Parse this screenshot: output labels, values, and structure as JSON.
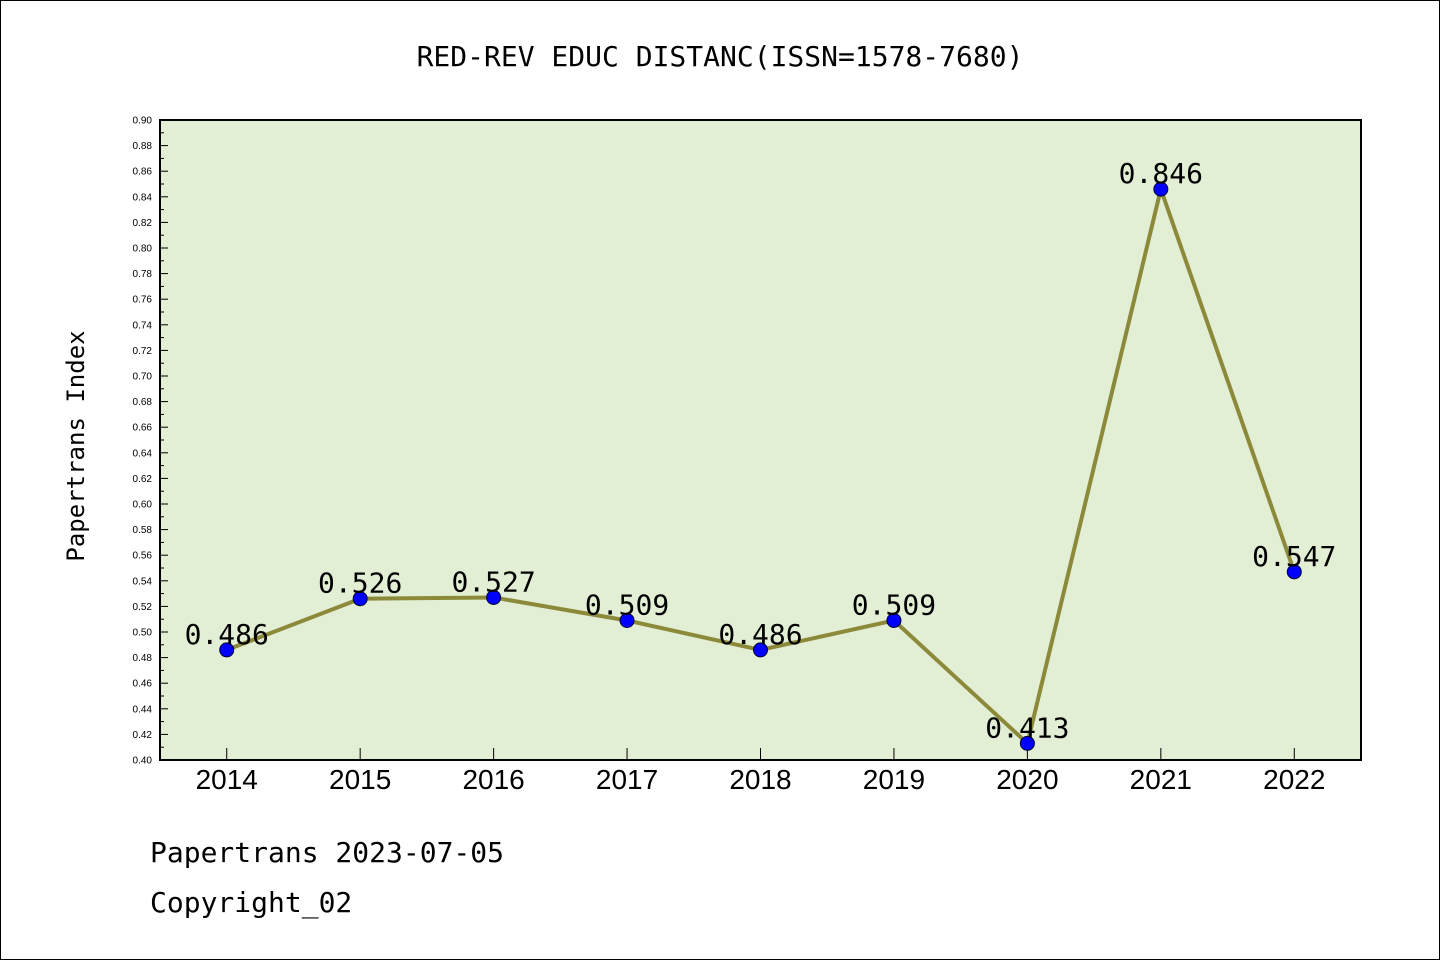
{
  "chart_data": {
    "type": "line",
    "title": "RED-REV EDUC DISTANC(ISSN=1578-7680)",
    "xlabel": "",
    "ylabel": "Papertrans Index",
    "categories": [
      "2014",
      "2015",
      "2016",
      "2017",
      "2018",
      "2019",
      "2020",
      "2021",
      "2022"
    ],
    "values": [
      0.486,
      0.526,
      0.527,
      0.509,
      0.486,
      0.509,
      0.413,
      0.846,
      0.547
    ],
    "data_labels": [
      "0.486",
      "0.526",
      "0.527",
      "0.509",
      "0.486",
      "0.509",
      "0.413",
      "0.846",
      "0.547"
    ],
    "ylim": [
      0.4,
      0.9
    ],
    "yticks": [
      "0.40",
      "0.42",
      "0.44",
      "0.46",
      "0.48",
      "0.50",
      "0.52",
      "0.54",
      "0.56",
      "0.58",
      "0.60",
      "0.62",
      "0.64",
      "0.66",
      "0.68",
      "0.70",
      "0.72",
      "0.74",
      "0.76",
      "0.78",
      "0.80",
      "0.82",
      "0.84",
      "0.86",
      "0.88",
      "0.90"
    ],
    "grid": false,
    "legend": "none",
    "colors": {
      "plot_background": "#e2efd5",
      "line": "#8c8a3a",
      "marker": "#0000ff"
    }
  },
  "footer": {
    "date_line": "Papertrans 2023-07-05",
    "copyright": "Copyright_02"
  }
}
